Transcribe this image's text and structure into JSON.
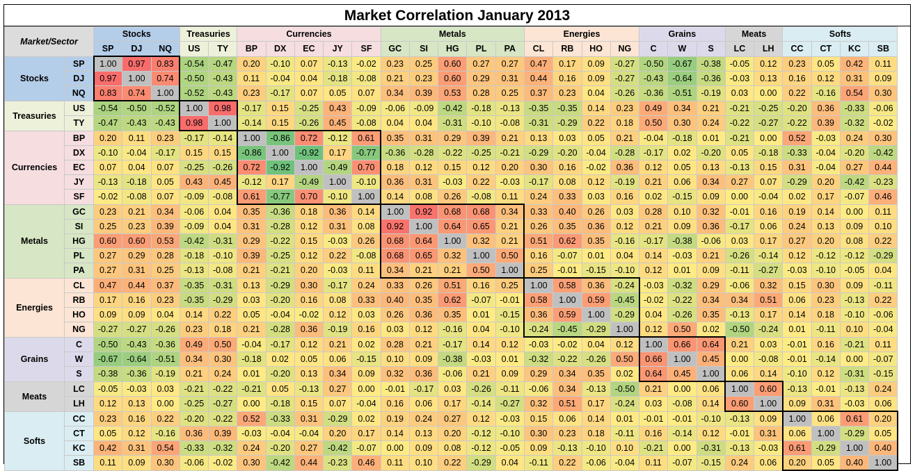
{
  "chart_data": {
    "type": "heatmap",
    "title": "Market Correlation January 2013",
    "corner_label": "Market/Sector",
    "sectors": [
      {
        "name": "Stocks",
        "color": "#b4cde8",
        "tickers": [
          "SP",
          "DJ",
          "NQ"
        ]
      },
      {
        "name": "Treasuries",
        "color": "#eef1da",
        "tickers": [
          "US",
          "TY"
        ]
      },
      {
        "name": "Currencies",
        "color": "#f5dde0",
        "tickers": [
          "BP",
          "DX",
          "EC",
          "JY",
          "SF"
        ]
      },
      {
        "name": "Metals",
        "color": "#d7e6c4",
        "tickers": [
          "GC",
          "SI",
          "HG",
          "PL",
          "PA"
        ]
      },
      {
        "name": "Energies",
        "color": "#fce5d4",
        "tickers": [
          "CL",
          "RB",
          "HO",
          "NG"
        ]
      },
      {
        "name": "Grains",
        "color": "#dcdaea",
        "tickers": [
          "C",
          "W",
          "S"
        ]
      },
      {
        "name": "Meats",
        "color": "#d6d6d6",
        "tickers": [
          "LC",
          "LH"
        ]
      },
      {
        "name": "Softs",
        "color": "#daedf2",
        "tickers": [
          "CC",
          "CT",
          "KC",
          "SB"
        ]
      }
    ],
    "tickers": [
      "SP",
      "DJ",
      "NQ",
      "US",
      "TY",
      "BP",
      "DX",
      "EC",
      "JY",
      "SF",
      "GC",
      "SI",
      "HG",
      "PL",
      "PA",
      "CL",
      "RB",
      "HO",
      "NG",
      "C",
      "W",
      "S",
      "LC",
      "LH",
      "CC",
      "CT",
      "KC",
      "SB"
    ],
    "matrix": [
      [
        "1.00",
        "0.97",
        "0.83",
        "-0.54",
        "-0.47",
        "0.20",
        "-0.10",
        "0.07",
        "-0.13",
        "-0.02",
        "0.23",
        "0.25",
        "0.60",
        "0.27",
        "0.27",
        "0.47",
        "0.17",
        "0.09",
        "-0.27",
        "-0.50",
        "-0.67",
        "-0.38",
        "-0.05",
        "0.12",
        "0.23",
        "0.05",
        "0.42",
        "0.11"
      ],
      [
        "0.97",
        "1.00",
        "0.74",
        "-0.50",
        "-0.43",
        "0.11",
        "-0.04",
        "0.04",
        "-0.18",
        "-0.08",
        "0.21",
        "0.23",
        "0.60",
        "0.29",
        "0.31",
        "0.44",
        "0.16",
        "0.09",
        "-0.27",
        "-0.43",
        "-0.64",
        "-0.36",
        "-0.03",
        "0.13",
        "0.16",
        "0.12",
        "0.31",
        "0.09"
      ],
      [
        "0.83",
        "0.74",
        "1.00",
        "-0.52",
        "-0.43",
        "0.23",
        "-0.17",
        "0.07",
        "0.05",
        "0.07",
        "0.34",
        "0.39",
        "0.53",
        "0.28",
        "0.25",
        "0.37",
        "0.23",
        "0.04",
        "-0.26",
        "-0.36",
        "-0.51",
        "-0.19",
        "0.03",
        "0.00",
        "0.22",
        "-0.16",
        "0.54",
        "0.30"
      ],
      [
        "-0.54",
        "-0.50",
        "-0.52",
        "1.00",
        "0.98",
        "-0.17",
        "0.15",
        "-0.25",
        "0.43",
        "-0.09",
        "-0.06",
        "-0.09",
        "-0.42",
        "-0.18",
        "-0.13",
        "-0.35",
        "-0.35",
        "0.14",
        "0.23",
        "0.49",
        "0.34",
        "0.21",
        "-0.21",
        "-0.25",
        "-0.20",
        "0.36",
        "-0.33",
        "-0.06"
      ],
      [
        "-0.47",
        "-0.43",
        "-0.43",
        "0.98",
        "1.00",
        "-0.14",
        "0.15",
        "-0.26",
        "0.45",
        "-0.08",
        "0.04",
        "0.04",
        "-0.31",
        "-0.10",
        "-0.08",
        "-0.31",
        "-0.29",
        "0.22",
        "0.18",
        "0.50",
        "0.30",
        "0.24",
        "-0.22",
        "-0.27",
        "-0.22",
        "0.39",
        "-0.32",
        "-0.02"
      ],
      [
        "0.20",
        "0.11",
        "0.23",
        "-0.17",
        "-0.14",
        "1.00",
        "-0.86",
        "0.72",
        "-0.12",
        "0.61",
        "0.35",
        "0.31",
        "0.29",
        "0.39",
        "0.21",
        "0.13",
        "0.03",
        "0.05",
        "0.21",
        "-0.04",
        "-0.18",
        "0.01",
        "-0.21",
        "0.00",
        "0.52",
        "-0.03",
        "0.24",
        "0.30"
      ],
      [
        "-0.10",
        "-0.04",
        "-0.17",
        "0.15",
        "0.15",
        "-0.86",
        "1.00",
        "-0.92",
        "0.17",
        "-0.77",
        "-0.36",
        "-0.28",
        "-0.22",
        "-0.25",
        "-0.21",
        "-0.29",
        "-0.20",
        "-0.04",
        "-0.28",
        "-0.17",
        "0.02",
        "-0.20",
        "0.05",
        "-0.18",
        "-0.33",
        "-0.04",
        "-0.20",
        "-0.42"
      ],
      [
        "0.07",
        "0.04",
        "0.07",
        "-0.25",
        "-0.26",
        "0.72",
        "-0.92",
        "1.00",
        "-0.49",
        "0.70",
        "0.18",
        "0.12",
        "0.15",
        "0.12",
        "0.20",
        "0.30",
        "0.16",
        "-0.02",
        "0.36",
        "0.12",
        "0.05",
        "0.13",
        "-0.13",
        "0.15",
        "0.31",
        "-0.04",
        "0.27",
        "0.44"
      ],
      [
        "-0.13",
        "-0.18",
        "0.05",
        "0.43",
        "0.45",
        "-0.12",
        "0.17",
        "-0.49",
        "1.00",
        "-0.10",
        "0.36",
        "0.31",
        "-0.03",
        "0.22",
        "-0.03",
        "-0.17",
        "0.08",
        "0.12",
        "-0.19",
        "0.21",
        "0.06",
        "0.34",
        "0.27",
        "0.07",
        "-0.29",
        "0.20",
        "-0.42",
        "-0.23"
      ],
      [
        "-0.02",
        "-0.08",
        "0.07",
        "-0.09",
        "-0.08",
        "0.61",
        "-0.77",
        "0.70",
        "-0.10",
        "1.00",
        "0.14",
        "0.08",
        "0.26",
        "-0.08",
        "0.11",
        "0.24",
        "0.33",
        "0.03",
        "0.16",
        "0.02",
        "-0.15",
        "0.09",
        "0.00",
        "-0.04",
        "0.02",
        "0.17",
        "-0.07",
        "0.46"
      ],
      [
        "0.23",
        "0.21",
        "0.34",
        "-0.06",
        "0.04",
        "0.35",
        "-0.36",
        "0.18",
        "0.36",
        "0.14",
        "1.00",
        "0.92",
        "0.68",
        "0.68",
        "0.34",
        "0.33",
        "0.40",
        "0.26",
        "0.03",
        "0.28",
        "0.10",
        "0.32",
        "-0.01",
        "0.16",
        "0.19",
        "0.14",
        "0.00",
        "0.11"
      ],
      [
        "0.25",
        "0.23",
        "0.39",
        "-0.09",
        "0.04",
        "0.31",
        "-0.28",
        "0.12",
        "0.31",
        "0.08",
        "0.92",
        "1.00",
        "0.64",
        "0.65",
        "0.21",
        "0.26",
        "0.35",
        "0.36",
        "0.12",
        "0.21",
        "0.09",
        "0.36",
        "-0.17",
        "0.06",
        "0.24",
        "0.13",
        "0.09",
        "0.10"
      ],
      [
        "0.60",
        "0.60",
        "0.53",
        "-0.42",
        "-0.31",
        "0.29",
        "-0.22",
        "0.15",
        "-0.03",
        "0.26",
        "0.68",
        "0.64",
        "1.00",
        "0.32",
        "0.21",
        "0.51",
        "0.62",
        "0.35",
        "-0.16",
        "-0.17",
        "-0.38",
        "-0.06",
        "0.03",
        "0.17",
        "0.27",
        "0.20",
        "0.08",
        "0.22"
      ],
      [
        "0.27",
        "0.29",
        "0.28",
        "-0.18",
        "-0.10",
        "0.39",
        "-0.25",
        "0.12",
        "0.22",
        "-0.08",
        "0.68",
        "0.65",
        "0.32",
        "1.00",
        "0.50",
        "0.16",
        "-0.07",
        "0.01",
        "0.04",
        "0.14",
        "-0.03",
        "0.21",
        "-0.26",
        "-0.14",
        "0.12",
        "-0.12",
        "-0.12",
        "-0.29"
      ],
      [
        "0.27",
        "0.31",
        "0.25",
        "-0.13",
        "-0.08",
        "0.21",
        "-0.21",
        "0.20",
        "-0.03",
        "0.11",
        "0.34",
        "0.21",
        "0.21",
        "0.50",
        "1.00",
        "0.25",
        "-0.01",
        "-0.15",
        "-0.10",
        "0.12",
        "0.01",
        "0.09",
        "-0.11",
        "-0.27",
        "-0.03",
        "-0.10",
        "-0.05",
        "0.04"
      ],
      [
        "0.47",
        "0.44",
        "0.37",
        "-0.35",
        "-0.31",
        "0.13",
        "-0.29",
        "0.30",
        "-0.17",
        "0.24",
        "0.33",
        "0.26",
        "0.51",
        "0.16",
        "0.25",
        "1.00",
        "0.58",
        "0.36",
        "-0.24",
        "-0.03",
        "-0.32",
        "0.29",
        "-0.06",
        "0.32",
        "0.15",
        "0.30",
        "0.09",
        "-0.11"
      ],
      [
        "0.17",
        "0.16",
        "0.23",
        "-0.35",
        "-0.29",
        "0.03",
        "-0.20",
        "0.16",
        "0.08",
        "0.33",
        "0.40",
        "0.35",
        "0.62",
        "-0.07",
        "-0.01",
        "0.58",
        "1.00",
        "0.59",
        "-0.45",
        "-0.02",
        "-0.22",
        "0.34",
        "0.34",
        "0.51",
        "0.06",
        "0.23",
        "-0.13",
        "0.22"
      ],
      [
        "0.09",
        "0.09",
        "0.04",
        "0.14",
        "0.22",
        "0.05",
        "-0.04",
        "-0.02",
        "0.12",
        "0.03",
        "0.26",
        "0.36",
        "0.35",
        "0.01",
        "-0.15",
        "0.36",
        "0.59",
        "1.00",
        "-0.29",
        "0.04",
        "-0.26",
        "0.35",
        "-0.13",
        "0.17",
        "0.14",
        "0.18",
        "-0.10",
        "-0.06"
      ],
      [
        "-0.27",
        "-0.27",
        "-0.26",
        "0.23",
        "0.18",
        "0.21",
        "-0.28",
        "0.36",
        "-0.19",
        "0.16",
        "0.03",
        "0.12",
        "-0.16",
        "0.04",
        "-0.10",
        "-0.24",
        "-0.45",
        "-0.29",
        "1.00",
        "0.12",
        "0.50",
        "0.02",
        "-0.50",
        "-0.24",
        "0.01",
        "-0.11",
        "0.10",
        "-0.04"
      ],
      [
        "-0.50",
        "-0.43",
        "-0.36",
        "0.49",
        "0.50",
        "-0.04",
        "-0.17",
        "0.12",
        "0.21",
        "0.02",
        "0.28",
        "0.21",
        "-0.17",
        "0.14",
        "0.12",
        "-0.03",
        "-0.02",
        "0.04",
        "0.12",
        "1.00",
        "0.66",
        "0.64",
        "0.21",
        "0.03",
        "-0.01",
        "0.16",
        "-0.21",
        "0.11"
      ],
      [
        "-0.67",
        "-0.64",
        "-0.51",
        "0.34",
        "0.30",
        "-0.18",
        "0.02",
        "0.05",
        "0.06",
        "-0.15",
        "0.10",
        "0.09",
        "-0.38",
        "-0.03",
        "0.01",
        "-0.32",
        "-0.22",
        "-0.26",
        "0.50",
        "0.66",
        "1.00",
        "0.45",
        "0.00",
        "-0.08",
        "-0.01",
        "-0.14",
        "0.00",
        "-0.07"
      ],
      [
        "-0.38",
        "-0.36",
        "-0.19",
        "0.21",
        "0.24",
        "0.01",
        "-0.20",
        "0.13",
        "0.34",
        "0.09",
        "0.32",
        "0.36",
        "-0.06",
        "0.21",
        "0.09",
        "0.29",
        "0.34",
        "0.35",
        "0.02",
        "0.64",
        "0.45",
        "1.00",
        "0.06",
        "0.14",
        "-0.10",
        "0.12",
        "-0.31",
        "-0.15"
      ],
      [
        "-0.05",
        "-0.03",
        "0.03",
        "-0.21",
        "-0.22",
        "-0.21",
        "0.05",
        "-0.13",
        "0.27",
        "0.00",
        "-0.01",
        "-0.17",
        "0.03",
        "-0.26",
        "-0.11",
        "-0.06",
        "0.34",
        "-0.13",
        "-0.50",
        "0.21",
        "0.00",
        "0.06",
        "1.00",
        "0.60",
        "-0.13",
        "-0.01",
        "-0.13",
        "0.24"
      ],
      [
        "0.12",
        "0.13",
        "0.00",
        "-0.25",
        "-0.27",
        "0.00",
        "-0.18",
        "0.15",
        "0.07",
        "-0.04",
        "0.16",
        "0.06",
        "0.17",
        "-0.14",
        "-0.27",
        "0.32",
        "0.51",
        "0.17",
        "-0.24",
        "0.03",
        "-0.08",
        "0.14",
        "0.60",
        "1.00",
        "0.09",
        "0.31",
        "-0.03",
        "0.06"
      ],
      [
        "0.23",
        "0.16",
        "0.22",
        "-0.20",
        "-0.22",
        "0.52",
        "-0.33",
        "0.31",
        "-0.29",
        "0.02",
        "0.19",
        "0.24",
        "0.27",
        "0.12",
        "-0.03",
        "0.15",
        "0.06",
        "0.14",
        "0.01",
        "-0.01",
        "-0.01",
        "-0.10",
        "-0.13",
        "0.09",
        "1.00",
        "0.06",
        "0.61",
        "0.20"
      ],
      [
        "0.05",
        "0.12",
        "-0.16",
        "0.36",
        "0.39",
        "-0.03",
        "-0.04",
        "-0.04",
        "0.20",
        "0.17",
        "0.14",
        "0.13",
        "0.20",
        "-0.12",
        "-0.10",
        "0.30",
        "0.23",
        "0.18",
        "-0.11",
        "0.16",
        "-0.14",
        "0.12",
        "-0.01",
        "0.31",
        "0.06",
        "1.00",
        "-0.29",
        "0.05"
      ],
      [
        "0.42",
        "0.31",
        "0.54",
        "-0.33",
        "-0.32",
        "0.24",
        "-0.20",
        "0.27",
        "-0.42",
        "-0.07",
        "0.00",
        "0.09",
        "0.08",
        "-0.12",
        "-0.05",
        "0.09",
        "-0.13",
        "-0.10",
        "0.10",
        "-0.21",
        "0.00",
        "-0.31",
        "-0.13",
        "-0.03",
        "0.61",
        "-0.29",
        "1.00",
        "0.40"
      ],
      [
        "0.11",
        "0.09",
        "0.30",
        "-0.06",
        "-0.02",
        "0.30",
        "-0.42",
        "0.44",
        "-0.23",
        "0.46",
        "0.11",
        "0.10",
        "0.22",
        "-0.29",
        "0.04",
        "-0.11",
        "0.22",
        "-0.06",
        "-0.04",
        "0.11",
        "-0.07",
        "-0.15",
        "0.24",
        "0.06",
        "0.20",
        "0.05",
        "0.40",
        "1.00"
      ]
    ],
    "color_scale": {
      "min": -1,
      "max": 1,
      "low": "#63be7b",
      "mid": "#ffeb84",
      "high": "#f8696b",
      "diagonal": "#c0c0c0"
    }
  }
}
